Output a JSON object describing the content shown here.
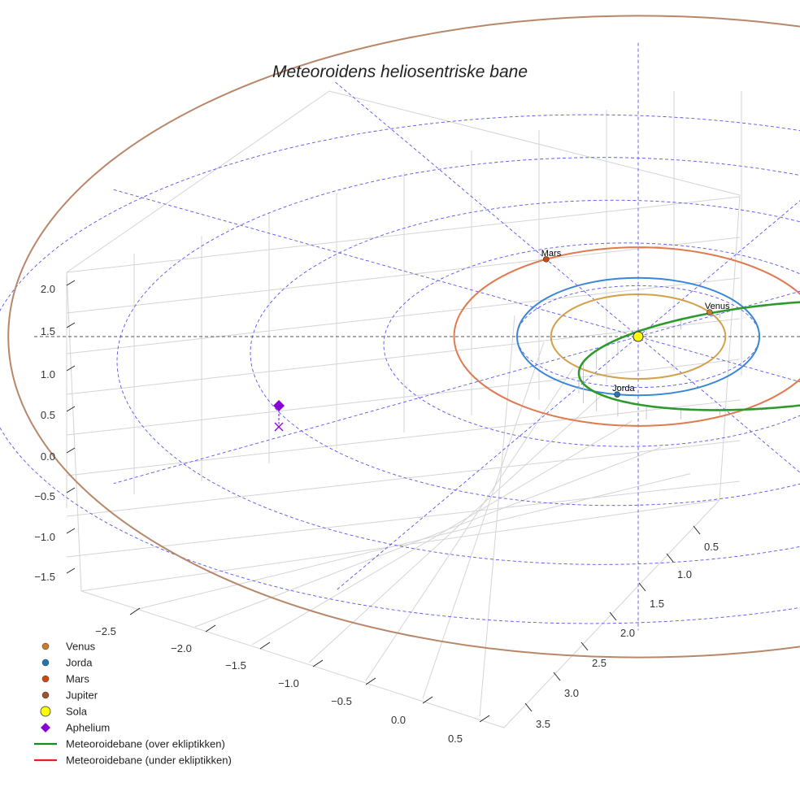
{
  "chart_data": {
    "type": "scatter-3d",
    "title": "Meteoroidens heliosentriske bane",
    "axes": {
      "x": {
        "ticks": [
          "−2.5",
          "−2.0",
          "−1.5",
          "−1.0",
          "−0.5",
          "0.0",
          "0.5"
        ]
      },
      "y": {
        "ticks": [
          "0.5",
          "1.0",
          "1.5",
          "2.0",
          "2.5",
          "3.0",
          "3.5"
        ]
      },
      "z": {
        "ticks": [
          "2.0",
          "1.5",
          "1.0",
          "0.5",
          "0.0",
          "−0.5",
          "−1.0",
          "−1.5"
        ]
      }
    },
    "planets": [
      {
        "name": "Venus",
        "orbit_radius_au": 0.72,
        "color": "#c8812a",
        "orbit_color": "#d4a04c",
        "label": "Venus",
        "angle_deg": 35
      },
      {
        "name": "Jorda",
        "orbit_radius_au": 1.0,
        "color": "#1f77b4",
        "orbit_color": "#3a86d4",
        "label": "Jorda",
        "angle_deg": -100
      },
      {
        "name": "Mars",
        "orbit_radius_au": 1.52,
        "color": "#cc4a10",
        "orbit_color": "#e07a50",
        "label": "Mars",
        "angle_deg": 120
      },
      {
        "name": "Jupiter",
        "orbit_radius_au": 5.2,
        "color": "#a0522d",
        "orbit_color": "#b8876a",
        "label": "",
        "angle_deg": 0
      }
    ],
    "sun": {
      "name": "Sola",
      "color": "#ffff00"
    },
    "meteoroid_orbit": {
      "perihelion_au": 0.45,
      "aphelion_au": 2.97,
      "above_color": "#2e9a2e",
      "below_color": "#ee1c1c"
    },
    "aphelion": {
      "name": "Aphelium",
      "color": "#8b00d4"
    },
    "grid_rings_au": [
      1,
      2,
      3,
      4,
      5
    ],
    "legend": {
      "placement": "lower-left",
      "entries": [
        {
          "label": "Venus",
          "marker": "circle",
          "color": "#c8812a"
        },
        {
          "label": "Jorda",
          "marker": "circle",
          "color": "#1f77b4"
        },
        {
          "label": "Mars",
          "marker": "circle",
          "color": "#cc4a10"
        },
        {
          "label": "Jupiter",
          "marker": "circle",
          "color": "#a0522d"
        },
        {
          "label": "Sola",
          "marker": "big-circle",
          "color": "#ffff00"
        },
        {
          "label": "Aphelium",
          "marker": "diamond",
          "color": "#8b00d4"
        },
        {
          "label": "Meteoroidebane (over ekliptikken)",
          "marker": "line",
          "color": "#1a8a1a"
        },
        {
          "label": "Meteoroidebane (under ekliptikken)",
          "marker": "line",
          "color": "#ee1c1c"
        }
      ]
    }
  }
}
